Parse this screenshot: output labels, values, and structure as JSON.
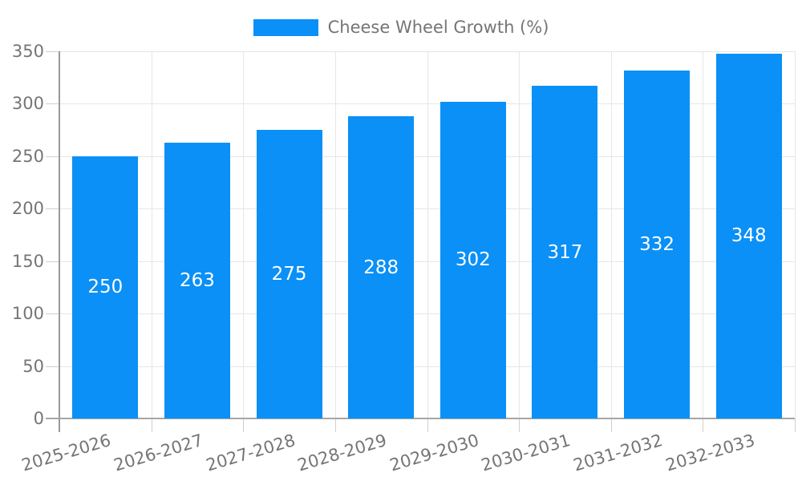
{
  "chart_data": {
    "type": "bar",
    "title": "",
    "series_name": "Cheese Wheel Growth (%)",
    "categories": [
      "2025-2026",
      "2026-2027",
      "2027-2028",
      "2028-2029",
      "2029-2030",
      "2030-2031",
      "2031-2032",
      "2032-2033"
    ],
    "values": [
      250,
      263,
      275,
      288,
      302,
      317,
      332,
      348
    ],
    "value_labels": [
      "250",
      "263",
      "275",
      "288",
      "302",
      "317",
      "332",
      "348"
    ],
    "xlabel": "",
    "ylabel": "",
    "ylim": [
      0,
      350
    ],
    "yticks": [
      0,
      50,
      100,
      150,
      200,
      250,
      300,
      350
    ],
    "grid": true,
    "legend_position": "top-center",
    "bar_color": "#0a90f6",
    "value_label_color": "#ffffff",
    "axis_text_color": "#757575",
    "gridline_color": "#e6e6e6",
    "axis_line_color": "#999999"
  }
}
